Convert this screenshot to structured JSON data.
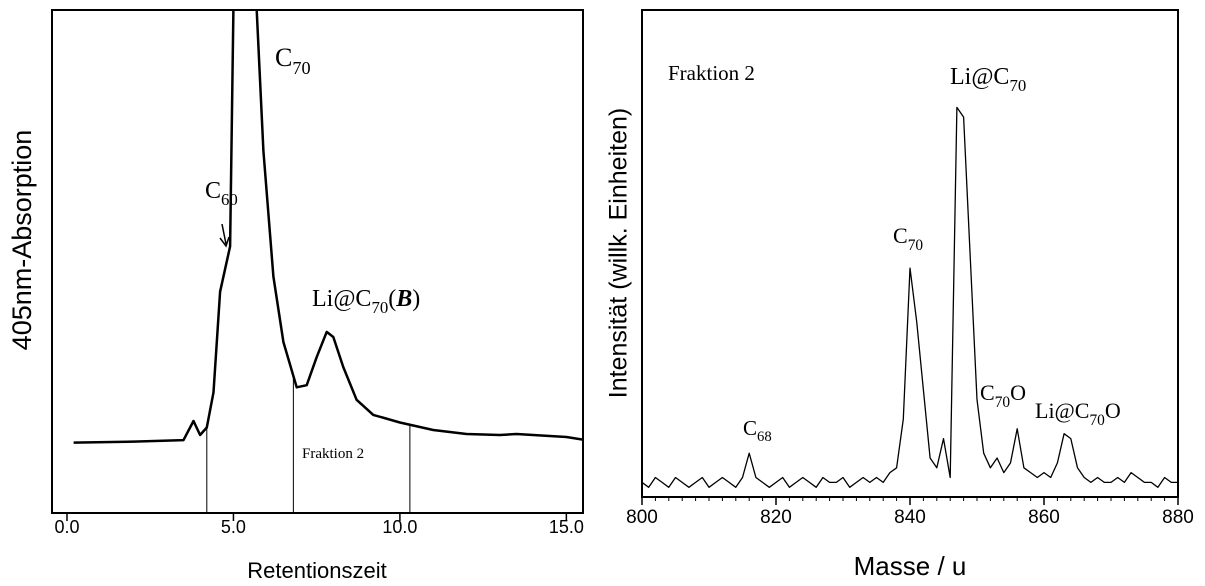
{
  "chart_data": [
    {
      "type": "line",
      "y_axis_label": "405nm-Absorption",
      "x_axis_label": "Retentionszeit",
      "xlim": [
        -0.45,
        15.5
      ],
      "ylim": [
        0,
        100
      ],
      "xticks": [
        {
          "value": 0,
          "label": "0.0"
        },
        {
          "value": 5,
          "label": "5.0"
        },
        {
          "value": 10,
          "label": "10.0"
        },
        {
          "value": 15,
          "label": "15.0"
        }
      ],
      "color": "#000000",
      "x": [
        0.2,
        2,
        3.5,
        3.8,
        4.0,
        4.2,
        4.4,
        4.6,
        4.9,
        5.0,
        5.1,
        5.5,
        5.7,
        5.9,
        6.2,
        6.5,
        6.9,
        7.2,
        7.5,
        7.8,
        8.0,
        8.3,
        8.7,
        9.2,
        10,
        11,
        12,
        13,
        13.5,
        14,
        15,
        15.5
      ],
      "values": [
        14,
        14.2,
        14.5,
        18.3,
        15.5,
        17,
        24,
        44,
        53,
        100,
        150,
        150,
        100,
        72,
        47,
        34,
        25,
        25.4,
        31,
        36,
        35,
        29,
        22.5,
        19.5,
        18,
        16.5,
        15.7,
        15.5,
        15.7,
        15.5,
        15.1,
        14.6
      ],
      "fraction_bounds": [
        4.2,
        6.8,
        10.3
      ],
      "annotations": [
        {
          "parts": [
            {
              "text": "C"
            },
            {
              "text": "60",
              "sub": true
            }
          ]
        },
        {
          "parts": [
            {
              "text": "C"
            },
            {
              "text": "70",
              "sub": true
            }
          ]
        },
        {
          "parts": [
            {
              "text": "Li@C"
            },
            {
              "text": "70",
              "sub": true
            },
            {
              "text": "("
            },
            {
              "text": "B",
              "style": "bold-italic"
            },
            {
              "text": ")"
            }
          ]
        },
        {
          "parts": [
            {
              "text": "Fraktion 2"
            }
          ]
        }
      ]
    },
    {
      "type": "line",
      "y_axis_label": "Intensität (willk. Einheiten)",
      "x_axis_label": "Masse / u",
      "xlim": [
        800,
        880
      ],
      "ylim": [
        0,
        100
      ],
      "xticks": [
        800,
        820,
        840,
        860,
        880
      ],
      "color": "#000000",
      "x": [
        800,
        801,
        802,
        803,
        804,
        805,
        806,
        807,
        808,
        809,
        810,
        811,
        812,
        813,
        814,
        815,
        816,
        817,
        818,
        819,
        820,
        821,
        822,
        823,
        824,
        825,
        826,
        827,
        828,
        829,
        830,
        831,
        832,
        833,
        834,
        835,
        836,
        837,
        838,
        839,
        840,
        841,
        842,
        843,
        844,
        845,
        846,
        847,
        848,
        849,
        850,
        851,
        852,
        853,
        854,
        855,
        856,
        857,
        858,
        859,
        860,
        861,
        862,
        863,
        864,
        865,
        866,
        867,
        868,
        869,
        870,
        871,
        872,
        873,
        874,
        875,
        876,
        877,
        878,
        879,
        880
      ],
      "values": [
        3,
        2,
        4,
        3,
        2,
        4,
        3,
        2,
        3,
        4,
        2,
        3,
        4,
        3,
        2,
        4,
        9,
        4,
        3,
        2,
        3,
        4,
        2,
        3,
        4,
        3,
        2,
        4,
        3,
        3,
        4,
        2,
        3,
        4,
        3,
        4,
        3,
        5,
        6,
        16,
        47,
        36,
        22,
        8,
        6,
        12,
        4,
        80,
        78,
        49,
        20,
        9,
        6,
        8,
        5,
        7,
        14,
        6,
        5,
        4,
        5,
        4,
        7,
        13,
        12,
        6,
        4,
        3,
        4,
        3,
        3,
        4,
        3,
        5,
        4,
        3,
        3,
        2,
        4,
        3,
        3
      ],
      "annotations": [
        {
          "parts": [
            {
              "text": "Fraktion 2"
            }
          ]
        },
        {
          "parts": [
            {
              "text": "Li@C"
            },
            {
              "text": "70",
              "sub": true
            }
          ]
        },
        {
          "parts": [
            {
              "text": "C"
            },
            {
              "text": "70",
              "sub": true
            }
          ]
        },
        {
          "parts": [
            {
              "text": "C"
            },
            {
              "text": "68",
              "sub": true
            }
          ]
        },
        {
          "parts": [
            {
              "text": "C"
            },
            {
              "text": "70",
              "sub": true
            },
            {
              "text": "O"
            }
          ]
        },
        {
          "parts": [
            {
              "text": "Li@C"
            },
            {
              "text": "70",
              "sub": true
            },
            {
              "text": "O"
            }
          ]
        }
      ]
    }
  ]
}
